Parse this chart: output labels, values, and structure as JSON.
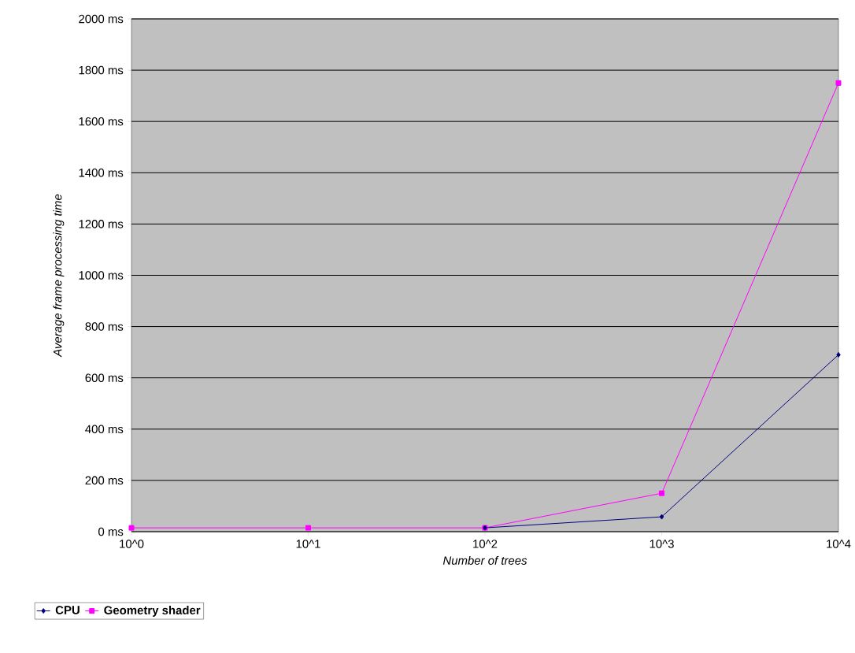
{
  "chart_data": {
    "type": "line",
    "xlabel": "Number of trees",
    "ylabel": "Average frame processing time",
    "categories": [
      "10^0",
      "10^1",
      "10^2",
      "10^3",
      "10^4"
    ],
    "series": [
      {
        "name": "CPU",
        "color": "#000080",
        "marker": "diamond",
        "values": [
          null,
          null,
          15,
          58,
          690
        ]
      },
      {
        "name": "Geometry shader",
        "color": "#ff00ff",
        "marker": "square",
        "values": [
          15,
          15,
          15,
          150,
          1750
        ]
      }
    ],
    "ylim": [
      0,
      2000
    ],
    "yticks": [
      {
        "value": 0,
        "label": "0 ms"
      },
      {
        "value": 200,
        "label": "200 ms"
      },
      {
        "value": 400,
        "label": "400 ms"
      },
      {
        "value": 600,
        "label": "600 ms"
      },
      {
        "value": 800,
        "label": "800 ms"
      },
      {
        "value": 1000,
        "label": "1000 ms"
      },
      {
        "value": 1200,
        "label": "1200 ms"
      },
      {
        "value": 1400,
        "label": "1400 ms"
      },
      {
        "value": 1600,
        "label": "1600 ms"
      },
      {
        "value": 1800,
        "label": "1800 ms"
      },
      {
        "value": 2000,
        "label": "2000 ms"
      }
    ],
    "grid": "y",
    "legend": "bottom"
  }
}
